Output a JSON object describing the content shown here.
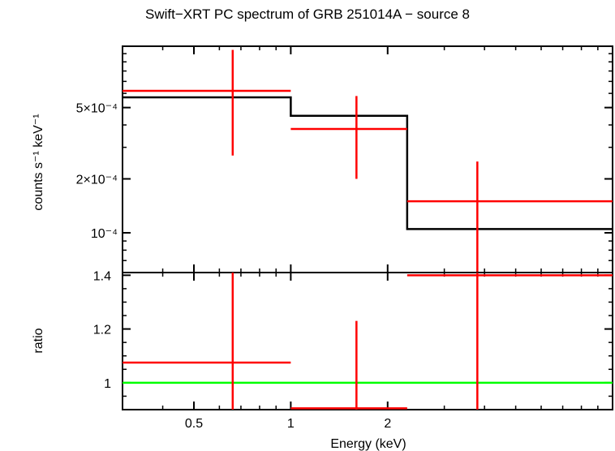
{
  "title": "Swift−XRT PC spectrum of GRB 251014A − source 8",
  "colors": {
    "data": "#ff0000",
    "model": "#000000",
    "unity": "#00ff00"
  },
  "chart_data": [
    {
      "type": "line",
      "panel": "top",
      "ylabel": "counts s⁻¹ keV⁻¹",
      "yscale": "log",
      "xscale": "log",
      "xlim": [
        0.3,
        10
      ],
      "ylim": [
        6e-05,
        0.0011
      ],
      "yticks": [
        {
          "value": 0.0005,
          "label": "5×10⁻⁴"
        },
        {
          "value": 0.0002,
          "label": "2×10⁻⁴"
        },
        {
          "value": 0.0001,
          "label": "10⁻⁴"
        }
      ],
      "model_steps": [
        {
          "x0": 0.3,
          "x1": 1.0,
          "y": 0.00057
        },
        {
          "x0": 1.0,
          "x1": 2.3,
          "y": 0.00045
        },
        {
          "x0": 2.3,
          "x1": 10.0,
          "y": 0.000105
        }
      ],
      "data_points": [
        {
          "x": 0.66,
          "xlo": 0.3,
          "xhi": 1.0,
          "y": 0.00062,
          "ylo": 0.00027,
          "yhi": 0.00105
        },
        {
          "x": 1.6,
          "xlo": 1.0,
          "xhi": 2.3,
          "y": 0.00038,
          "ylo": 0.0002,
          "yhi": 0.00058
        },
        {
          "x": 3.8,
          "xlo": 2.3,
          "xhi": 10.0,
          "y": 0.00015,
          "ylo": 6e-05,
          "yhi": 0.00025
        }
      ]
    },
    {
      "type": "line",
      "panel": "bottom",
      "xlabel": "Energy (keV)",
      "ylabel": "ratio",
      "xscale": "log",
      "xlim": [
        0.3,
        10
      ],
      "ylim": [
        0.9,
        1.41
      ],
      "xticks": [
        {
          "value": 0.5,
          "label": "0.5"
        },
        {
          "value": 1,
          "label": "1"
        },
        {
          "value": 2,
          "label": "2"
        }
      ],
      "yticks": [
        {
          "value": 1.4,
          "label": "1.4"
        },
        {
          "value": 1.2,
          "label": "1.2"
        },
        {
          "value": 1,
          "label": "1"
        }
      ],
      "reference_line": 1,
      "data_points": [
        {
          "x": 0.66,
          "xlo": 0.3,
          "xhi": 1.0,
          "y": 1.075,
          "ylo": 0.9,
          "yhi": 1.41
        },
        {
          "x": 1.6,
          "xlo": 1.0,
          "xhi": 2.3,
          "y": 0.905,
          "ylo": 0.9,
          "yhi": 1.23
        },
        {
          "x": 3.8,
          "xlo": 2.3,
          "xhi": 10.0,
          "y": 1.4,
          "ylo": 0.9,
          "yhi": 1.41
        }
      ]
    }
  ]
}
